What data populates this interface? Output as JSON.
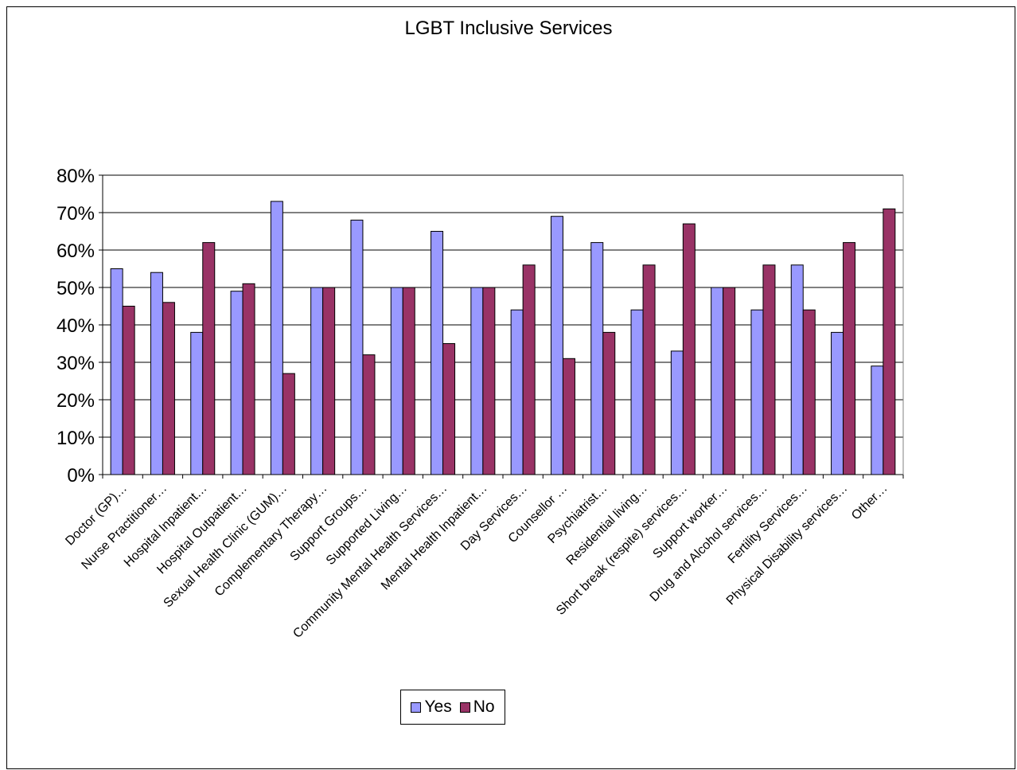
{
  "chart_data": {
    "type": "bar",
    "title": "LGBT Inclusive Services",
    "xlabel": "",
    "ylabel": "",
    "ylim": [
      0,
      80
    ],
    "yticks": [
      "0%",
      "10%",
      "20%",
      "30%",
      "40%",
      "50%",
      "60%",
      "70%",
      "80%"
    ],
    "grid": true,
    "legend": "bottom",
    "categories": [
      "Doctor (GP)…",
      "Nurse Practitioner…",
      "Hospital Inpatient…",
      "Hospital Outpatient…",
      "Sexual Health Clinic (GUM)…",
      "Complementary Therapy…",
      "Support Groups…",
      "Supported Living…",
      "Community Mental Health Services…",
      "Mental Health Inpatient…",
      "Day Services…",
      "Counsellor …",
      "Psychiatrist…",
      "Residential living…",
      "Short break (respite) services…",
      "Support worker…",
      "Drug and Alcohol services…",
      "Fertility Services…",
      "Physical Disability services…",
      "Other…"
    ],
    "series": [
      {
        "name": "Yes",
        "color": "#9999ff",
        "values": [
          55,
          54,
          38,
          49,
          73,
          50,
          68,
          50,
          65,
          50,
          44,
          69,
          62,
          44,
          33,
          50,
          44,
          56,
          38,
          29
        ]
      },
      {
        "name": "No",
        "color": "#993366",
        "values": [
          45,
          46,
          62,
          51,
          27,
          50,
          32,
          50,
          35,
          50,
          56,
          31,
          38,
          56,
          67,
          50,
          56,
          44,
          62,
          71
        ]
      }
    ]
  }
}
